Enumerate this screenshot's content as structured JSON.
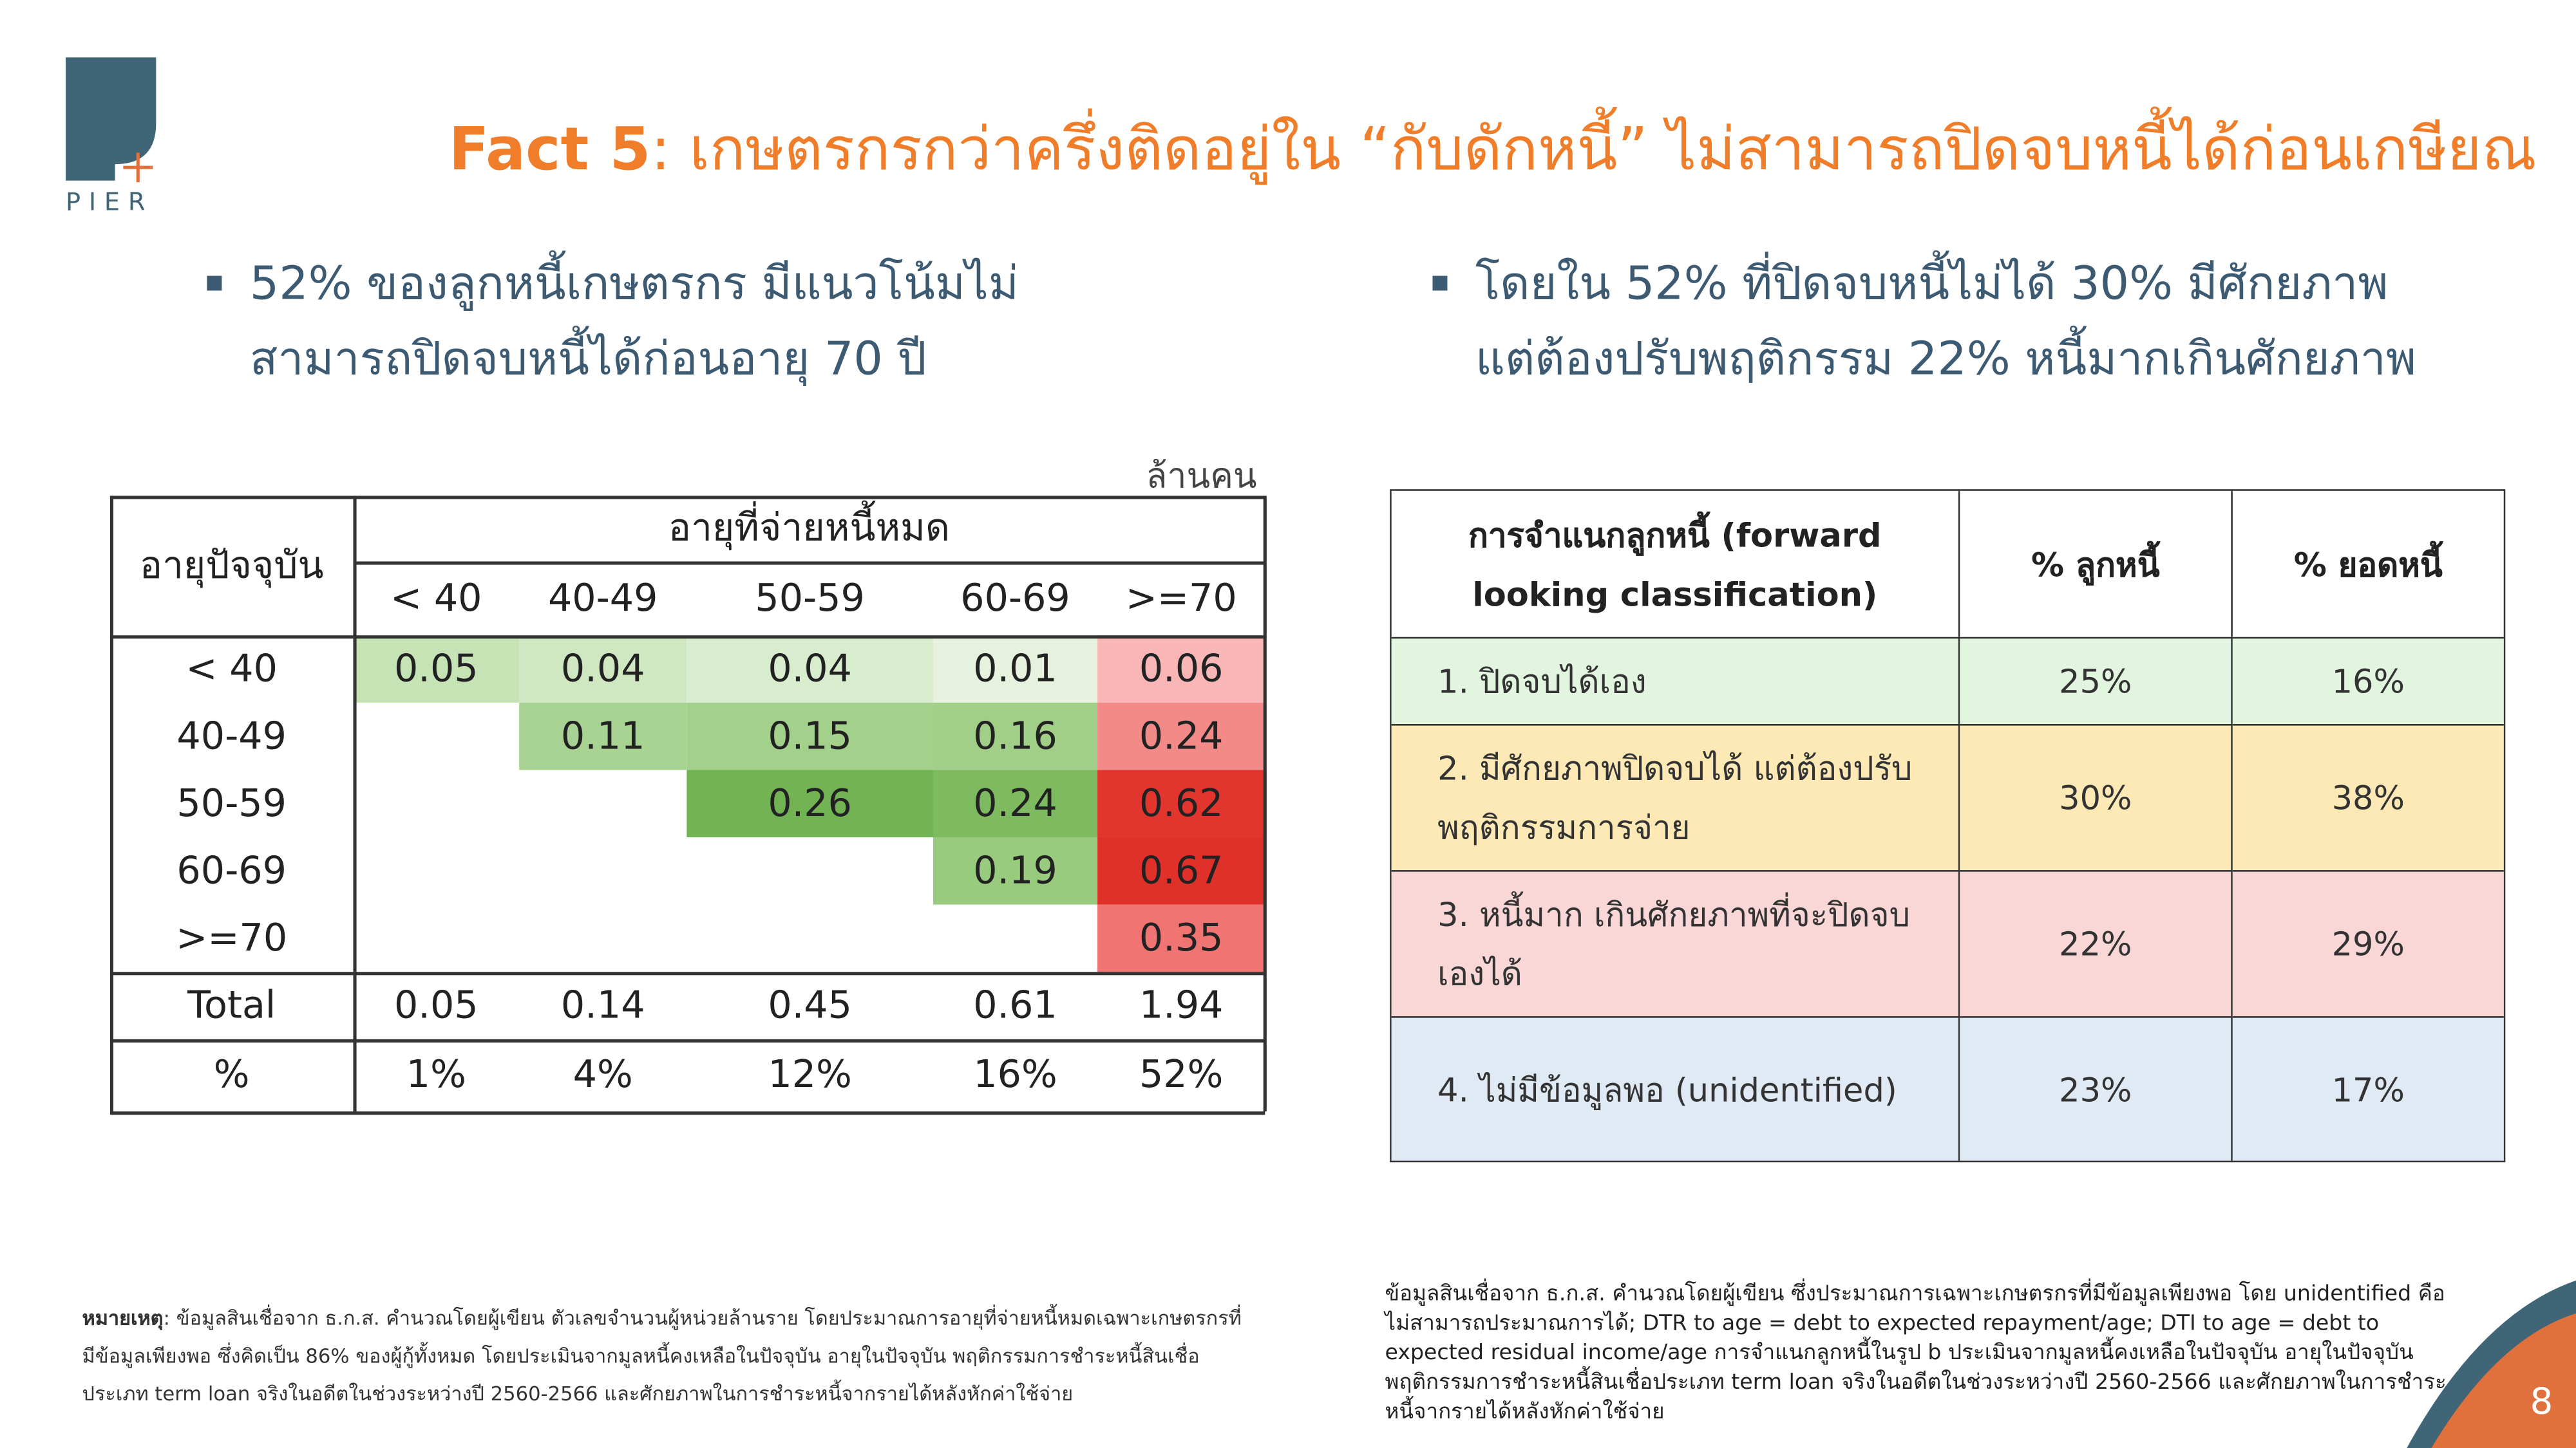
{
  "logo": "PIER",
  "header": {
    "title_prefix": "Fact 5",
    "title": ": เกษตรกรกว่าครึ่งติดอยู่ใน “กับดักหนี้” ไม่สามารถปิดจบหนี้ได้ก่อนเกษียณ"
  },
  "bullets": [
    "52% ของลูกหนี้เกษตรกร มีแนวโน้มไม่สามารถปิดจบหนี้ได้ก่อนอายุ 70 ปี",
    "โดยใน 52% ที่ปิดจบหนี้ไม่ได้ 30% มีศักยภาพแต่ต้องปรับพฤติกรรม 22% หนี้มากเกินศักยภาพ"
  ],
  "debt_table": {
    "unit": "ล้านคน",
    "row_header": "อายุปัจจุบัน",
    "column_group": "อายุที่จ่ายหนี้หมด",
    "columns": [
      "< 40",
      "40-49",
      "50-59",
      "60-69",
      ">=70"
    ],
    "rows": [
      {
        "label": "< 40",
        "cells": [
          "0.05",
          "0.04",
          "0.04",
          "0.01",
          "0.06"
        ]
      },
      {
        "label": "40-49",
        "cells": [
          null,
          "0.11",
          "0.15",
          "0.16",
          "0.24"
        ]
      },
      {
        "label": "50-59",
        "cells": [
          null,
          null,
          "0.26",
          "0.24",
          "0.62"
        ]
      },
      {
        "label": "60-69",
        "cells": [
          null,
          null,
          null,
          "0.19",
          "0.67"
        ]
      },
      {
        "label": ">=70",
        "cells": [
          null,
          null,
          null,
          null,
          "0.35"
        ]
      },
      {
        "label": "Total",
        "cells": [
          "0.05",
          "0.14",
          "0.45",
          "0.61",
          "1.94"
        ]
      },
      {
        "label": "%",
        "cells": [
          "1%",
          "4%",
          "12%",
          "16%",
          "52%"
        ]
      }
    ]
  },
  "classification_table": {
    "columns": [
      "การจำแนกลูกหนี้ (forward looking classification)",
      "% ลูกหนี้",
      "% ยอดหนี้"
    ],
    "rows": [
      [
        "1. ปิดจบได้เอง",
        "25%",
        "16%"
      ],
      [
        "2. มีศักยภาพปิดจบได้ แต่ต้องปรับพฤติกรรมการจ่าย",
        "30%",
        "38%"
      ],
      [
        "3. หนี้มาก เกินศักยภาพที่จะปิดจบเองได้",
        "22%",
        "29%"
      ],
      [
        "4. ไม่มีข้อมูลพอ (unidentified)",
        "23%",
        "17%"
      ]
    ]
  },
  "notes": {
    "left_label": "หมายเหตุ",
    "left": ": ข้อมูลสินเชื่อจาก ธ.ก.ส. คำนวณโดยผู้เขียน ตัวเลขจำนวนผู้หน่วยล้านราย โดยประมาณการอายุที่จ่ายหนี้หมดเฉพาะเกษตรกรที่มีข้อมูลเพียงพอ ซึ่งคิดเป็น 86% ของผู้กู้ทั้งหมด โดยประเมินจากมูลหนี้คงเหลือในปัจจุบัน อายุในปัจจุบัน พฤติกรรมการชำระหนี้สินเชื่อประเภท term loan จริงในอดีตในช่วงระหว่างปี 2560-2566 และศักยภาพในการชำระหนี้จากรายได้หลังหักค่าใช้จ่าย",
    "right": "ข้อมูลสินเชื่อจาก ธ.ก.ส. คำนวณโดยผู้เขียน ซึ่งประมาณการเฉพาะเกษตรกรที่มีข้อมูลเพียงพอ โดย unidentified คือไม่สามารถประมาณการได้; DTR to age = debt to expected repayment/age; DTI to age = debt to expected residual income/age การจำแนกลูกหนี้ในรูป b ประเมินจากมูลหนี้คงเหลือในปัจจุบัน อายุในปัจจุบัน พฤติกรรมการชำระหนี้สินเชื่อประเภท term loan จริงในอดีตในช่วงระหว่างปี 2560-2566 และศักยภาพในการชำระหนี้จากรายได้หลังหักค่าใช้จ่าย"
  },
  "page_number": "8"
}
